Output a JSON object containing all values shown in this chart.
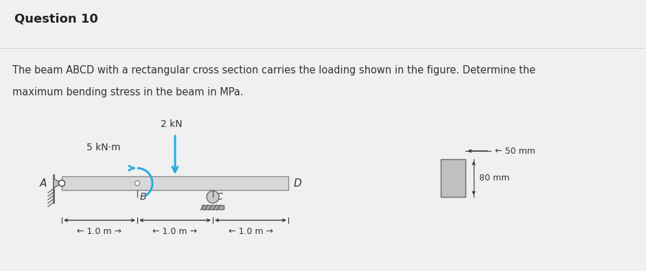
{
  "title": "Question 10",
  "description_line1": "The beam ABCD with a rectangular cross section carries the loading shown in the figure. Determine the",
  "description_line2": "maximum bending stress in the beam in MPa.",
  "bg_color": "#f0f0f0",
  "white": "#ffffff",
  "title_color": "#222222",
  "text_color": "#333333",
  "beam_face": "#d8d8d8",
  "beam_edge": "#888888",
  "cyan_color": "#29abe2",
  "force_arrow_color": "#29abe2",
  "support_face": "#a0a0a0",
  "support_edge": "#666666",
  "dim_color": "#333333",
  "cs_face": "#b8b8b8",
  "cs_edge": "#666666"
}
